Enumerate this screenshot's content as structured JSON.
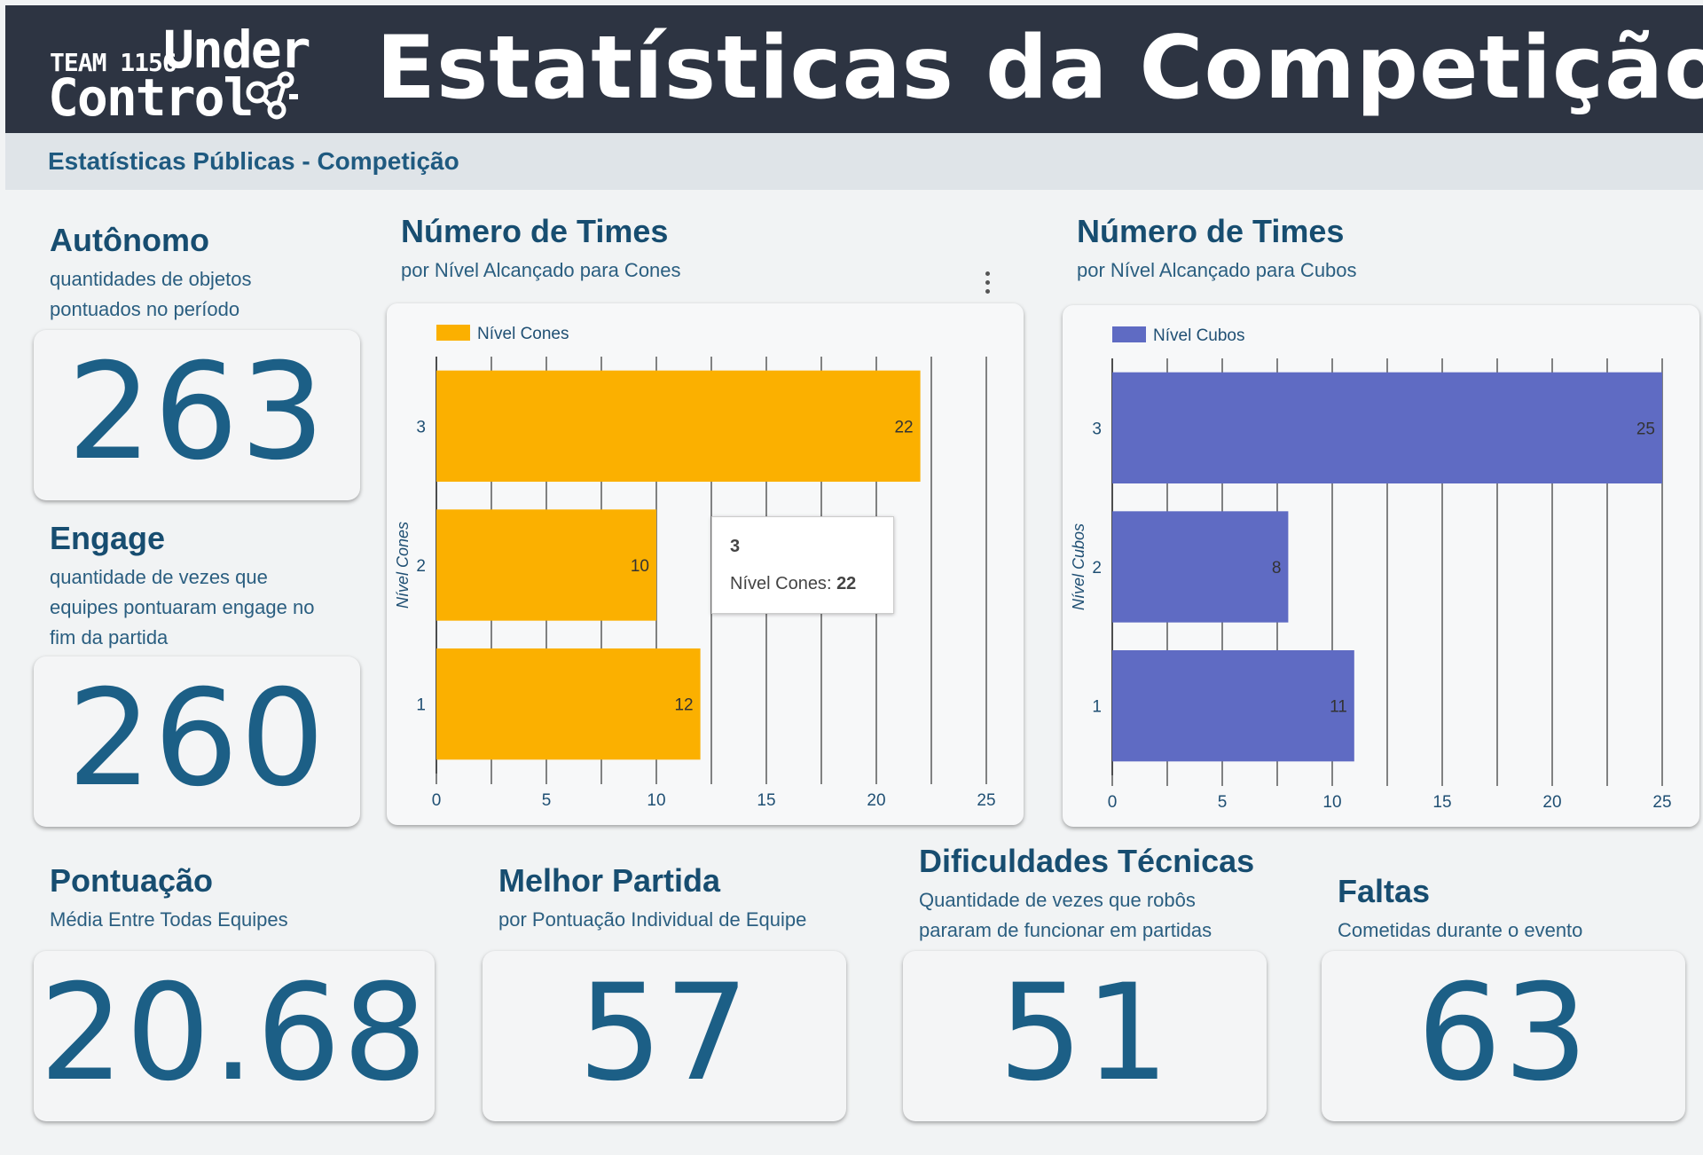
{
  "header": {
    "logo_team": "TEAM 1156",
    "logo_under": "Under",
    "logo_control": "Control",
    "title": "Estatísticas da Competição",
    "subtitle": "Estatísticas Públicas - Competição"
  },
  "autonomo": {
    "title": "Autônomo",
    "sub1": "quantidades de objetos",
    "sub2": "pontuados no período",
    "value": "263"
  },
  "engage": {
    "title": "Engage",
    "sub1": "quantidade de vezes que",
    "sub2": "equipes pontuaram engage no",
    "sub3": "fim da partida",
    "value": "260"
  },
  "pontuacao": {
    "title": "Pontuação",
    "sub": "Média Entre Todas Equipes",
    "value": "20.68"
  },
  "melhor": {
    "title": "Melhor Partida",
    "sub": "por Pontuação Individual de Equipe",
    "value": "57"
  },
  "dificuldades": {
    "title": "Dificuldades Técnicas",
    "sub1": "Quantidade de vezes que robôs",
    "sub2": "pararam de funcionar em partidas",
    "value": "51"
  },
  "faltas": {
    "title": "Faltas",
    "sub": "Cometidas durante o evento",
    "value": "63"
  },
  "cones_header": {
    "title": "Número de Times",
    "sub": "por Nível Alcançado para Cones"
  },
  "cubos_header": {
    "title": "Número de Times",
    "sub": "por Nível Alcançado para Cubos"
  },
  "chart_data": [
    {
      "type": "bar",
      "orientation": "horizontal",
      "title": "Número de Times",
      "subtitle": "por Nível Alcançado para Cones",
      "categories": [
        "3",
        "2",
        "1"
      ],
      "series": [
        {
          "name": "Nível Cones",
          "values": [
            22,
            10,
            12
          ],
          "color": "#fbb000"
        }
      ],
      "ylabel": "Nível Cones",
      "xlabel": "",
      "xlim": [
        0,
        25
      ],
      "xticks": [
        0,
        5,
        10,
        15,
        20,
        25
      ],
      "grid": true,
      "legend": "top-left",
      "tooltip": {
        "title": "3",
        "label": "Nível Cones",
        "value": "22"
      }
    },
    {
      "type": "bar",
      "orientation": "horizontal",
      "title": "Número de Times",
      "subtitle": "por Nível Alcançado para Cubos",
      "categories": [
        "3",
        "2",
        "1"
      ],
      "series": [
        {
          "name": "Nível Cubos",
          "values": [
            25,
            8,
            11
          ],
          "color": "#5f6bc3"
        }
      ],
      "ylabel": "Nível Cubos",
      "xlabel": "",
      "xlim": [
        0,
        25
      ],
      "xticks": [
        0,
        5,
        10,
        15,
        20,
        25
      ],
      "grid": true,
      "legend": "top-left"
    }
  ]
}
